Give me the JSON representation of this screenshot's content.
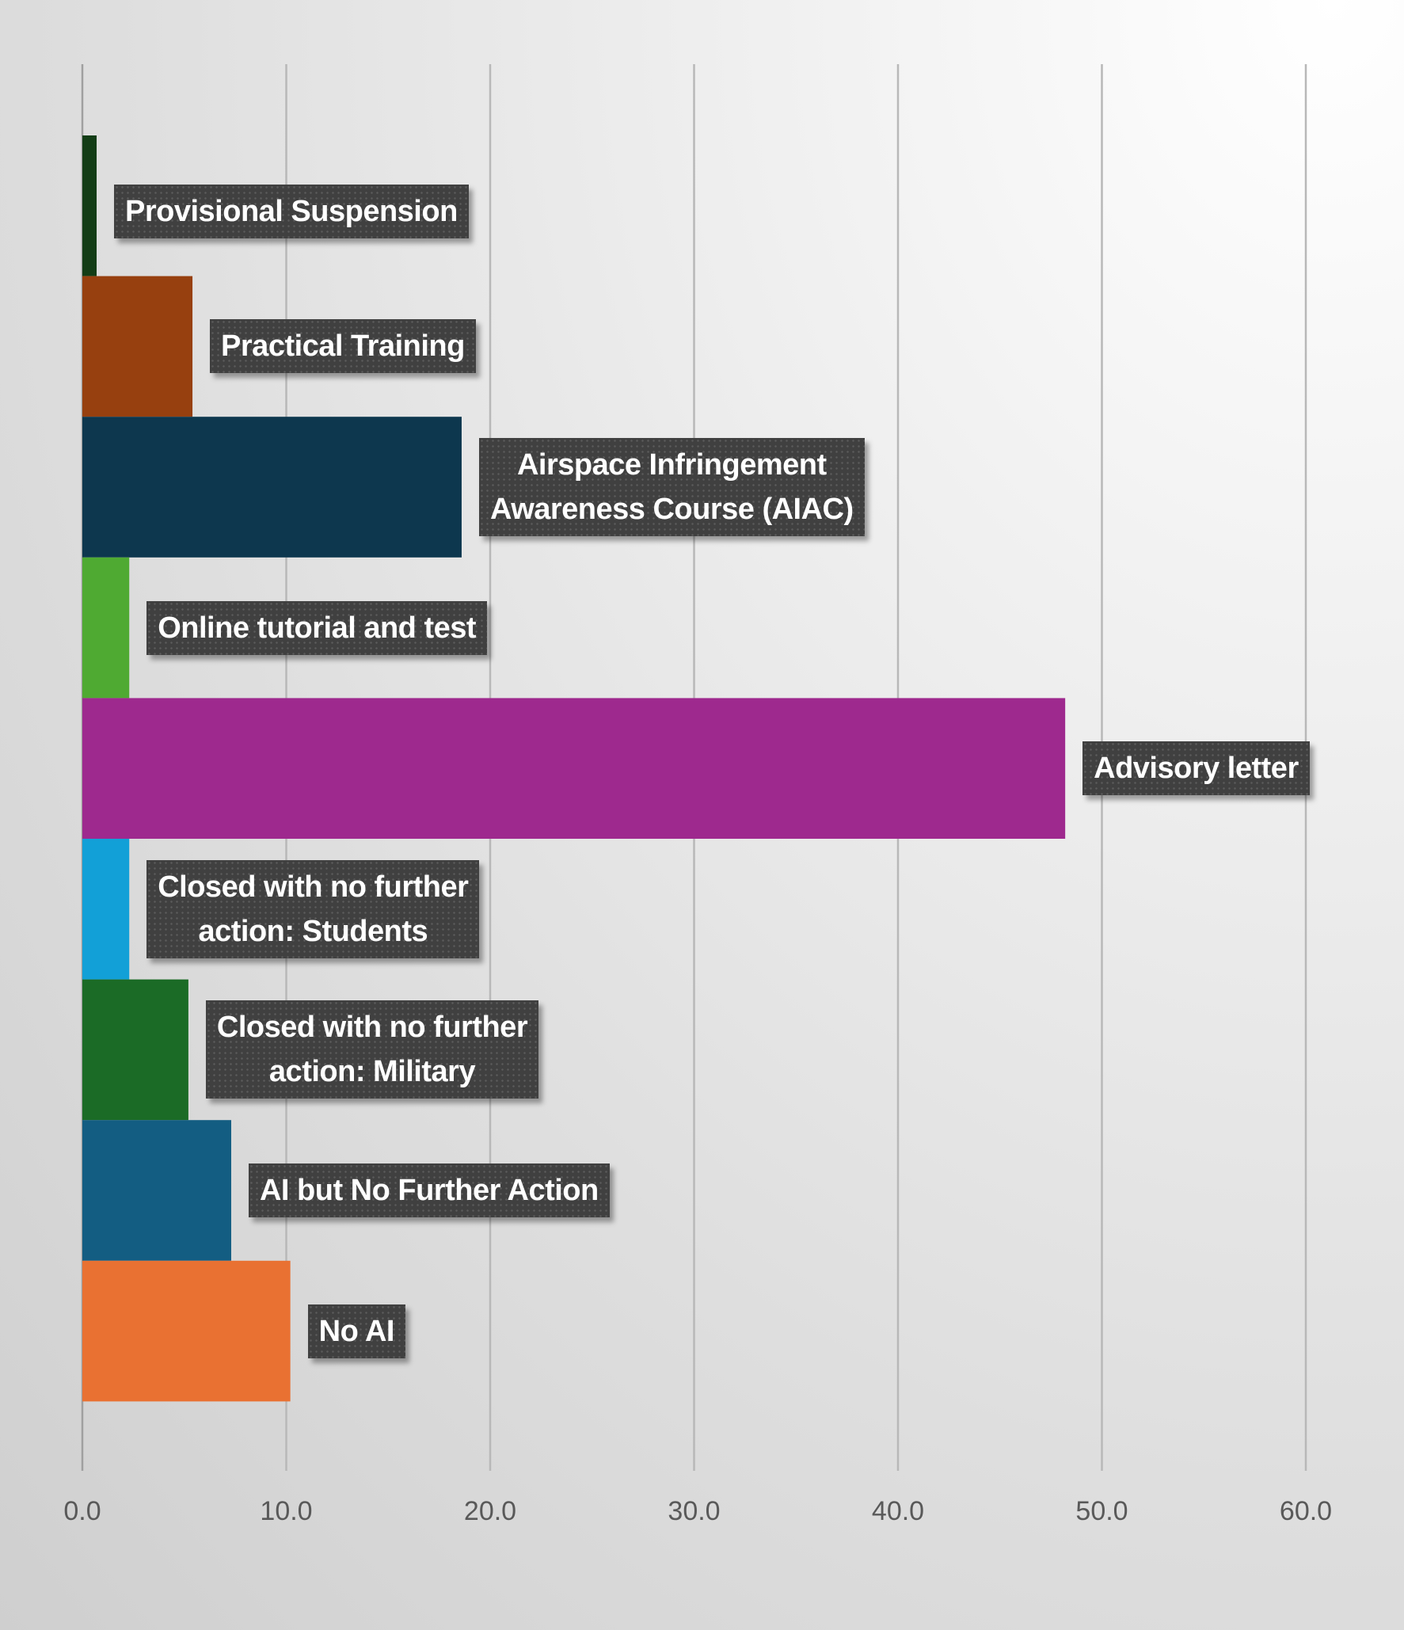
{
  "chart_data": {
    "type": "bar",
    "orientation": "horizontal",
    "title": "",
    "xlabel": "",
    "ylabel": "",
    "xlim": [
      0,
      60
    ],
    "x_ticks": [
      "0.0",
      "10.0",
      "20.0",
      "30.0",
      "40.0",
      "50.0",
      "60.0"
    ],
    "grid": true,
    "legend": "none",
    "categories": [
      "Provisional Suspension",
      "Practical Training",
      "Airspace Infringement Awareness Course (AIAC)",
      "Online tutorial and test",
      "Advisory letter",
      "Closed with no further action: Students",
      "Closed with no further action: Military",
      "AI but No Further Action",
      "No AI"
    ],
    "data_labels": [
      "Provisional Suspension",
      "Practical Training",
      "Airspace Infringement\nAwareness Course (AIAC)",
      "Online tutorial and test",
      "Advisory letter",
      "Closed with no further\naction: Students",
      "Closed with no further\naction: Military",
      "AI but No Further Action",
      "No AI"
    ],
    "values": [
      0.7,
      5.4,
      18.6,
      2.3,
      48.2,
      2.3,
      5.2,
      7.3,
      10.2
    ],
    "colors": [
      "#133d16",
      "#97400f",
      "#0d374e",
      "#4faa32",
      "#9e298e",
      "#12a0d7",
      "#1b6b26",
      "#135d82",
      "#e97132"
    ]
  }
}
